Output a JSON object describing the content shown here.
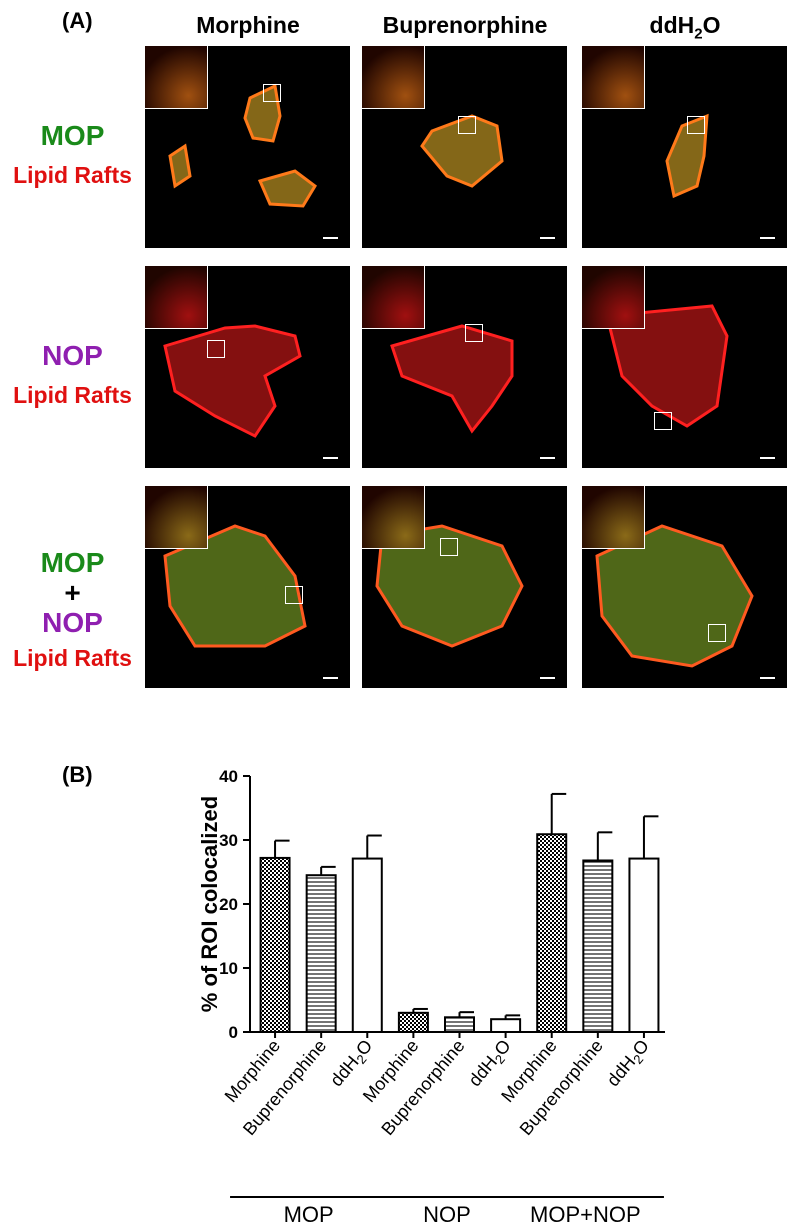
{
  "figure": {
    "panel_a_label": "(A)",
    "panel_b_label": "(B)",
    "columns": [
      "Morphine",
      "Buprenorphine",
      "ddH2O"
    ],
    "rows": [
      {
        "labels": [
          "MOP",
          "Lipid Rafts"
        ]
      },
      {
        "labels": [
          "NOP",
          "Lipid Rafts"
        ]
      },
      {
        "labels": [
          "MOP",
          "+",
          "NOP",
          "Lipid Rafts"
        ]
      }
    ],
    "colors": {
      "mop": "#1a8a1a",
      "nop": "#8f1fb0",
      "lipid_rafts": "#e01010"
    }
  },
  "chart_data": {
    "type": "bar",
    "ylabel": "% of ROI colocalized",
    "ylim": [
      0,
      40
    ],
    "yticks": [
      0,
      10,
      20,
      30,
      40
    ],
    "categories": [
      "Morphine",
      "Buprenorphine",
      "ddH2O",
      "Morphine",
      "Buprenorphine",
      "ddH2O",
      "Morphine",
      "Buprenorphine",
      "ddH2O"
    ],
    "values": [
      27.2,
      24.5,
      27.1,
      3.0,
      2.3,
      2.0,
      30.9,
      26.8,
      27.1
    ],
    "errors": [
      2.7,
      1.3,
      3.6,
      0.6,
      0.8,
      0.6,
      6.3,
      4.4,
      6.6
    ],
    "patterns": [
      "checker",
      "hlines",
      "none",
      "checker",
      "hlines",
      "none",
      "checker",
      "hlines",
      "none"
    ],
    "groups": [
      {
        "name": "MOP",
        "indices": [
          0,
          1,
          2
        ]
      },
      {
        "name": "NOP",
        "indices": [
          3,
          4,
          5
        ]
      },
      {
        "name": "MOP+NOP",
        "indices": [
          6,
          7,
          8
        ]
      }
    ]
  }
}
